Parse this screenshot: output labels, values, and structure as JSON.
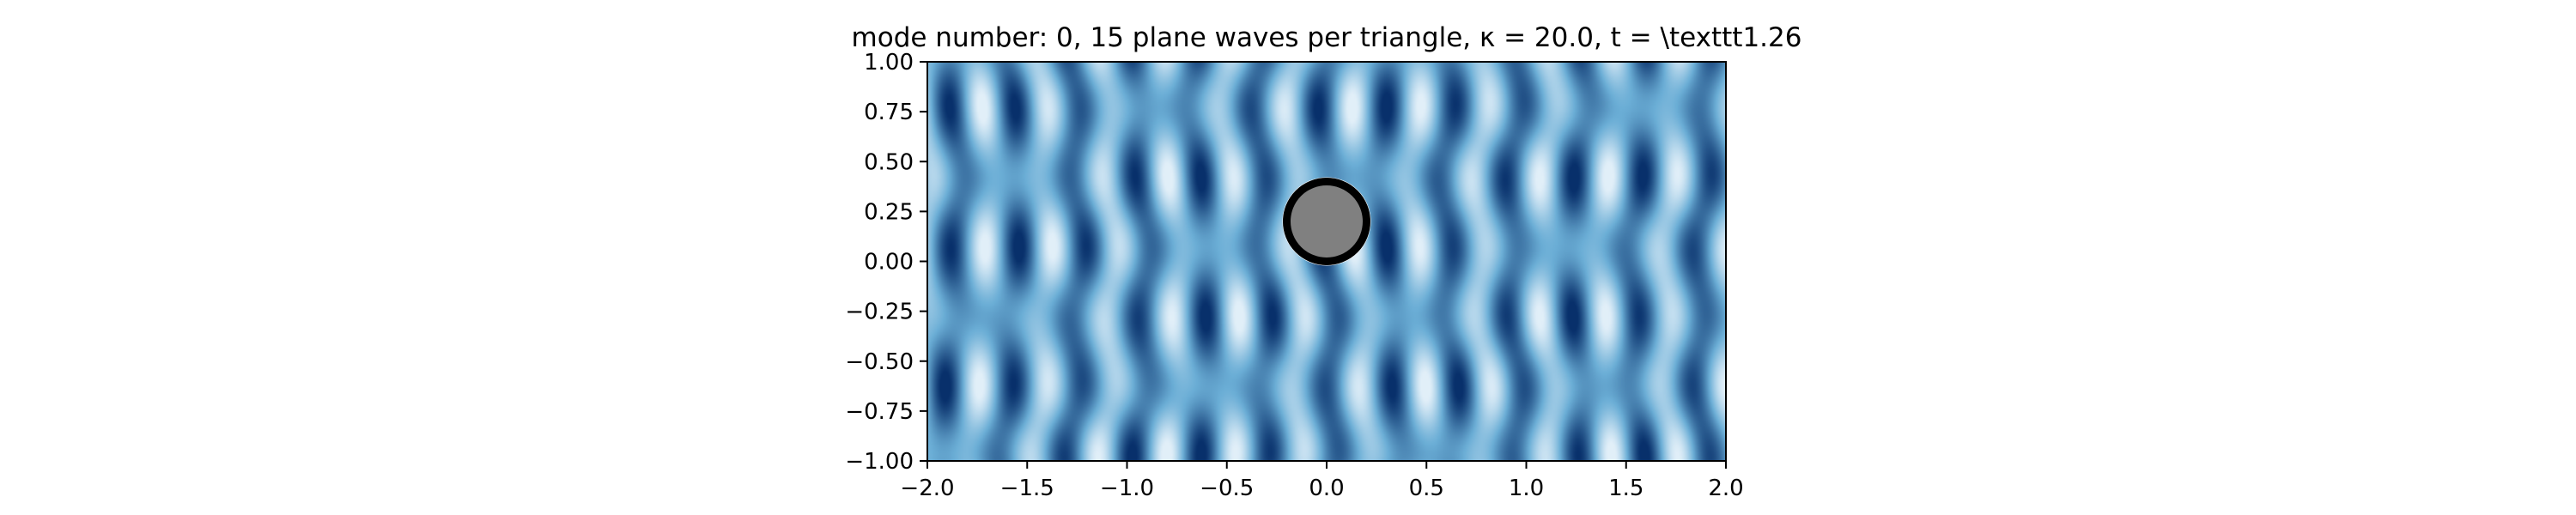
{
  "chart_data": {
    "type": "heatmap",
    "title": "mode number: 0, 15 plane waves per triangle, κ = 20.0, t =  \\texttt1.26",
    "xlabel": "",
    "ylabel": "",
    "xlim": [
      -2.0,
      2.0
    ],
    "ylim": [
      -1.0,
      1.0
    ],
    "x_ticks": [
      -2.0,
      -1.5,
      -1.0,
      -0.5,
      0.0,
      0.5,
      1.0,
      1.5,
      2.0
    ],
    "x_tick_labels": [
      "−2.0",
      "−1.5",
      "−1.0",
      "−0.5",
      "0.0",
      "0.5",
      "1.0",
      "1.5",
      "2.0"
    ],
    "y_ticks": [
      1.0,
      0.75,
      0.5,
      0.25,
      0.0,
      -0.25,
      -0.5,
      -0.75,
      -1.0
    ],
    "y_tick_labels": [
      "1.00",
      "0.75",
      "0.50",
      "0.25",
      "0.00",
      "−0.25",
      "−0.50",
      "−0.75",
      "−1.00"
    ],
    "colormap": "Blues",
    "colors": {
      "light": "#f7fbff",
      "mid": "#6baed6",
      "dark": "#08306b"
    },
    "wavenumber": 20.0,
    "grid": false,
    "obstacle": {
      "shape": "circle",
      "center": [
        0.0,
        0.2
      ],
      "radius": 0.2,
      "fill": "#808080",
      "edge": "#000000"
    }
  }
}
